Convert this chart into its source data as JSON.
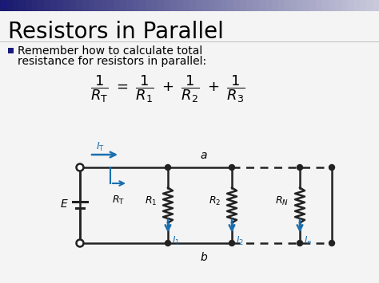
{
  "title": "Resistors in Parallel",
  "bullet_text_line1": "Remember how to calculate total",
  "bullet_text_line2": "resistance for resistors in parallel:",
  "bg_color": "#f0f0f0",
  "title_color": "#000000",
  "body_color": "#000000",
  "circuit_color": "#222222",
  "arrow_color": "#1a6faf",
  "bullet_color": "#1a1a7e",
  "formula_color": "#000000",
  "header_color_left": "#1a1a6e",
  "header_color_right": "#ccccdd"
}
